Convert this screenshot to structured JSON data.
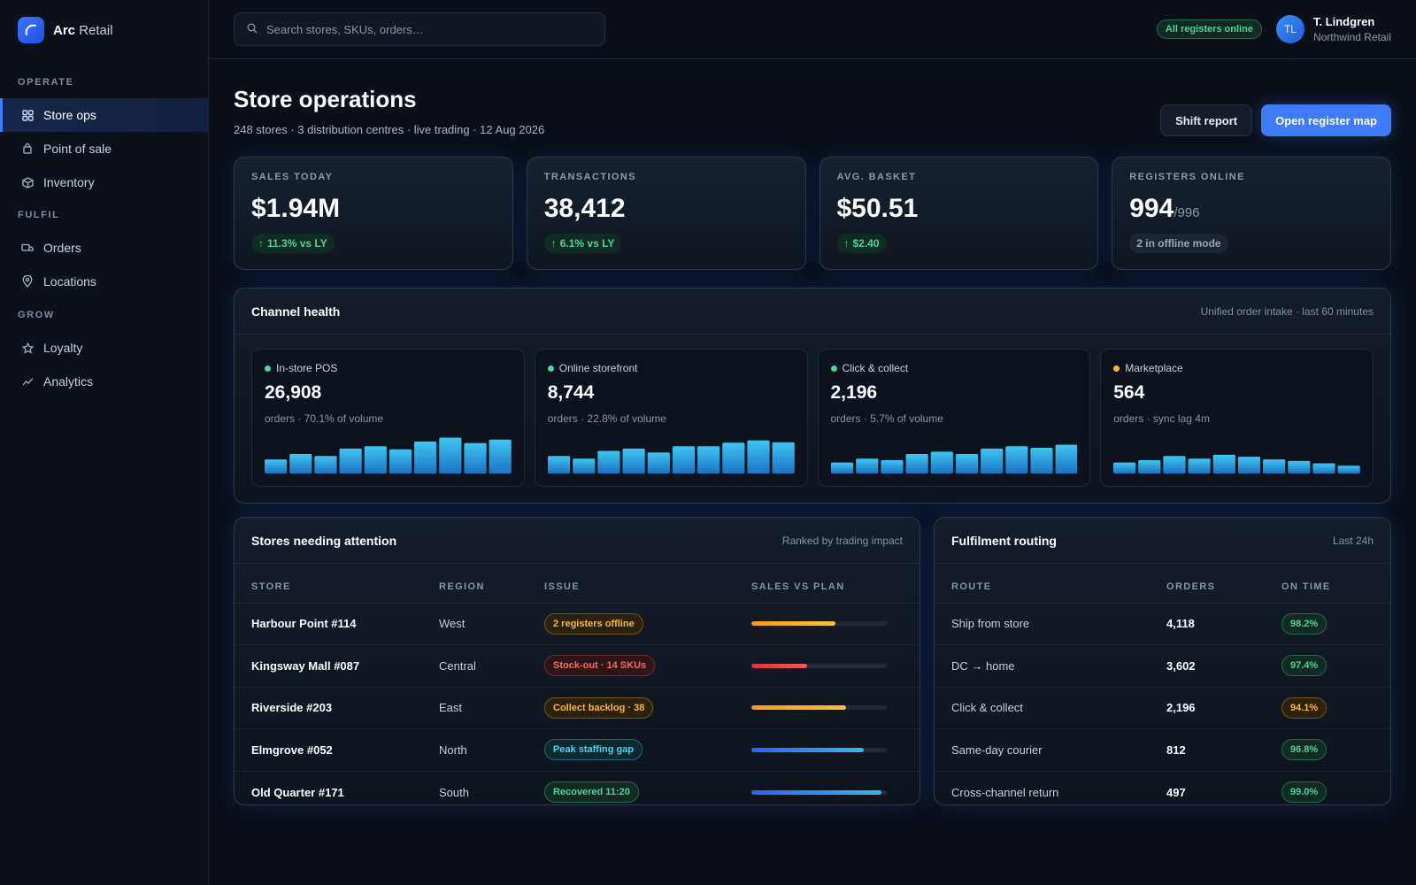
{
  "brand": {
    "name_bold": "Arc",
    "name_light": "Retail"
  },
  "nav": {
    "sections": [
      {
        "title": "OPERATE",
        "items": [
          {
            "label": "Store ops",
            "icon": "grid-icon",
            "active": true
          },
          {
            "label": "Point of sale",
            "icon": "bag-icon"
          },
          {
            "label": "Inventory",
            "icon": "box-icon"
          }
        ]
      },
      {
        "title": "FULFIL",
        "items": [
          {
            "label": "Orders",
            "icon": "truck-icon"
          },
          {
            "label": "Locations",
            "icon": "pin-icon"
          }
        ]
      },
      {
        "title": "GROW",
        "items": [
          {
            "label": "Loyalty",
            "icon": "star-icon"
          },
          {
            "label": "Analytics",
            "icon": "chart-icon"
          }
        ]
      }
    ]
  },
  "search": {
    "placeholder": "Search stores, SKUs, orders…"
  },
  "status": {
    "label": "All registers online"
  },
  "user": {
    "initials": "TL",
    "name": "T. Lindgren",
    "org": "Northwind Retail"
  },
  "page": {
    "title": "Store operations",
    "subtitle": "248 stores · 3 distribution centres · live trading · 12 Aug 2026",
    "secondary_action": "Shift report",
    "primary_action": "Open register map"
  },
  "kpis": [
    {
      "label": "SALES TODAY",
      "value": "$1.94M",
      "delta": "11.3% vs LY"
    },
    {
      "label": "TRANSACTIONS",
      "value": "38,412",
      "delta": "6.1% vs LY"
    },
    {
      "label": "AVG. BASKET",
      "value": "$50.51",
      "delta": "$2.40"
    },
    {
      "label": "REGISTERS ONLINE",
      "value": "994",
      "total": "/996",
      "note": "2 in offline mode"
    }
  ],
  "channels": {
    "title": "Channel health",
    "note": "Unified order intake · last 60 minutes",
    "items": [
      {
        "name": "In-store POS",
        "dot": "#3ddc97",
        "value": "26,908",
        "sub": "orders · 70.1% of volume",
        "bars": [
          0.36,
          0.5,
          0.45,
          0.64,
          0.7,
          0.62,
          0.82,
          0.92,
          0.78,
          0.87
        ]
      },
      {
        "name": "Online storefront",
        "dot": "#3ddc97",
        "value": "8,744",
        "sub": "orders · 22.8% of volume",
        "bars": [
          0.45,
          0.38,
          0.58,
          0.64,
          0.54,
          0.7,
          0.7,
          0.79,
          0.85,
          0.8
        ]
      },
      {
        "name": "Click & collect",
        "dot": "#3ddc97",
        "value": "2,196",
        "sub": "orders · 5.7% of volume",
        "bars": [
          0.28,
          0.38,
          0.34,
          0.5,
          0.56,
          0.5,
          0.64,
          0.7,
          0.66,
          0.74
        ]
      },
      {
        "name": "Marketplace",
        "dot": "#f5b93a",
        "value": "564",
        "sub": "orders · sync lag 4m",
        "bars": [
          0.28,
          0.34,
          0.45,
          0.38,
          0.48,
          0.43,
          0.36,
          0.32,
          0.26,
          0.2
        ]
      }
    ]
  },
  "stores": {
    "title": "Stores needing attention",
    "note": "Ranked by trading impact",
    "columns": [
      "STORE",
      "REGION",
      "ISSUE",
      "SALES VS PLAN"
    ],
    "rows": [
      {
        "store": "Harbour Point #114",
        "region": "West",
        "issue": "2 registers offline",
        "tone": "amber",
        "plan": 0.62
      },
      {
        "store": "Kingsway Mall #087",
        "region": "Central",
        "issue": "Stock-out · 14 SKUs",
        "tone": "red",
        "plan": 0.41
      },
      {
        "store": "Riverside #203",
        "region": "East",
        "issue": "Collect backlog · 38",
        "tone": "amber",
        "plan": 0.7
      },
      {
        "store": "Elmgrove #052",
        "region": "North",
        "issue": "Peak staffing gap",
        "tone": "teal",
        "plan": 0.83
      },
      {
        "store": "Old Quarter #171",
        "region": "South",
        "issue": "Recovered 11:20",
        "tone": "green",
        "plan": 0.96
      }
    ]
  },
  "routing": {
    "title": "Fulfilment routing",
    "note": "Last 24h",
    "columns": [
      "ROUTE",
      "ORDERS",
      "ON TIME"
    ],
    "rows": [
      {
        "route": "Ship from store",
        "orders": "4,118",
        "on_time": "98.2%",
        "tone": "green"
      },
      {
        "route": "DC → home",
        "orders": "3,602",
        "on_time": "97.4%",
        "tone": "green"
      },
      {
        "route": "Click & collect",
        "orders": "2,196",
        "on_time": "94.1%",
        "tone": "amber"
      },
      {
        "route": "Same-day courier",
        "orders": "812",
        "on_time": "96.8%",
        "tone": "green"
      },
      {
        "route": "Cross-channel return",
        "orders": "497",
        "on_time": "99.0%",
        "tone": "green"
      }
    ]
  }
}
